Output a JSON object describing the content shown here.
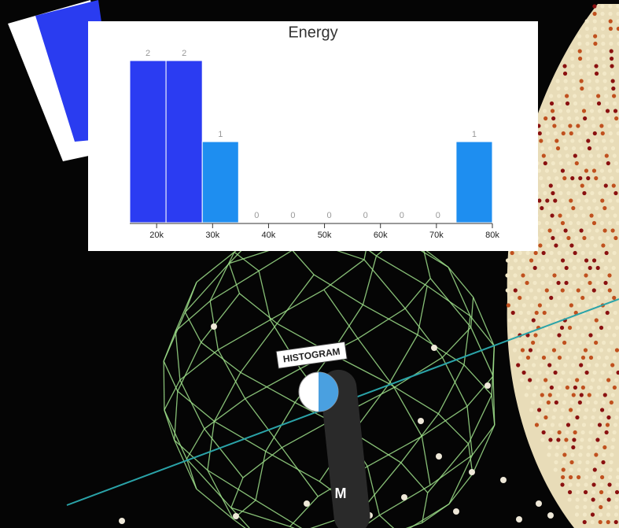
{
  "chart_data": {
    "type": "histogram",
    "title": "Energy",
    "bins": [
      15200,
      21680,
      28160,
      34640,
      41120,
      47600,
      54080,
      60560,
      67040,
      73520,
      80000
    ],
    "values": [
      2,
      2,
      1,
      0,
      0,
      0,
      0,
      0,
      0,
      1
    ],
    "colors": [
      "#2b3cf2",
      "#2b3cf2",
      "#1e8ef0",
      "#1e8ef0",
      "#1e8ef0",
      "#1e8ef0",
      "#1e8ef0",
      "#1e8ef0",
      "#1e8ef0",
      "#1e8ef0"
    ],
    "xlim": [
      15200,
      80000
    ],
    "xticks": [
      {
        "value": 20000,
        "label": "20k"
      },
      {
        "value": 30000,
        "label": "30k"
      },
      {
        "value": 40000,
        "label": "40k"
      },
      {
        "value": 50000,
        "label": "50k"
      },
      {
        "value": 60000,
        "label": "60k"
      },
      {
        "value": 70000,
        "label": "70k"
      },
      {
        "value": 80000,
        "label": "80k"
      }
    ],
    "ylim": [
      0,
      2
    ]
  },
  "scene_labels": {
    "tool": "HISTOGRAM",
    "controller": "M"
  }
}
